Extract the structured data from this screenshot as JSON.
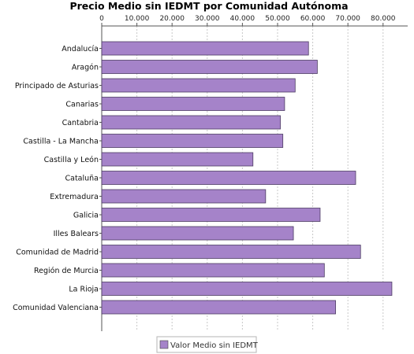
{
  "chart_data": {
    "type": "bar",
    "orientation": "horizontal",
    "title": "Precio Medio sin IEDMT por Comunidad Autónoma",
    "xlim": [
      0,
      87000
    ],
    "xticks": [
      0,
      10000,
      20000,
      30000,
      40000,
      50000,
      60000,
      70000,
      80000
    ],
    "xtick_labels": [
      "0",
      "10.000",
      "20.000",
      "30.000",
      "40.000",
      "50.000",
      "60.000",
      "70.000",
      "80.000"
    ],
    "x_axis_position": "top",
    "grid": true,
    "legend_position": "bottom-center",
    "categories": [
      "Andalucía",
      "Aragón",
      "Principado de Asturias",
      "Canarias",
      "Cantabria",
      "Castilla - La Mancha",
      "Castilla y León",
      "Cataluña",
      "Extremadura",
      "Galicia",
      "Illes Balears",
      "Comunidad de Madrid",
      "Región de Murcia",
      "La Rioja",
      "Comunidad Valenciana"
    ],
    "series": [
      {
        "name": "Valor Medio sin IEDMT",
        "color": "#a583c9",
        "values": [
          58800,
          61300,
          55000,
          52000,
          50800,
          51500,
          43000,
          72200,
          46600,
          62100,
          54500,
          73600,
          63300,
          82500,
          66500
        ]
      }
    ]
  }
}
